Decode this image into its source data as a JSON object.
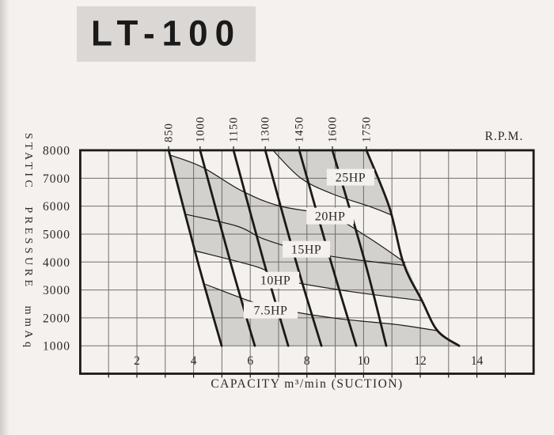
{
  "title": "LT-100",
  "colors": {
    "paper": "#f4f1ee",
    "shade": "#d3d1ce",
    "title_box": "#dad7d4",
    "curve_line": "#1a1a1a",
    "grid_line": "#5d5a56",
    "text": "#2a2826"
  },
  "chart_data": {
    "type": "line",
    "xlabel": "CAPACITY m³/min (SUCTION)",
    "ylabel": "STATIC PRESSURE mmAq",
    "rpm_axis_label": "R.P.M.",
    "xlim": [
      0,
      16
    ],
    "ylim": [
      0,
      8000
    ],
    "x_ticks": [
      2,
      4,
      6,
      8,
      10,
      12,
      14
    ],
    "y_ticks": [
      1000,
      2000,
      3000,
      4000,
      5000,
      6000,
      7000,
      8000
    ],
    "grid": "on",
    "rpm_curves": [
      {
        "rpm": "850",
        "pts": [
          [
            3.12,
            8000
          ],
          [
            4.15,
            4000
          ],
          [
            4.99,
            1000
          ]
        ]
      },
      {
        "rpm": "1000",
        "pts": [
          [
            4.23,
            8000
          ],
          [
            5.3,
            4000
          ],
          [
            6.16,
            1000
          ]
        ]
      },
      {
        "rpm": "1150",
        "pts": [
          [
            5.41,
            8000
          ],
          [
            6.48,
            4000
          ],
          [
            7.34,
            1000
          ]
        ]
      },
      {
        "rpm": "1300",
        "pts": [
          [
            6.53,
            8000
          ],
          [
            7.62,
            4000
          ],
          [
            8.51,
            1000
          ]
        ]
      },
      {
        "rpm": "1450",
        "pts": [
          [
            7.73,
            8000
          ],
          [
            8.85,
            4000
          ],
          [
            9.74,
            1000
          ]
        ]
      },
      {
        "rpm": "1600",
        "pts": [
          [
            8.9,
            8000
          ],
          [
            10.05,
            4000
          ],
          [
            10.8,
            1000
          ]
        ]
      },
      {
        "rpm": "1750",
        "pts": [
          [
            10.1,
            8000
          ],
          [
            10.91,
            5958
          ],
          [
            11.41,
            3946
          ],
          [
            12.06,
            2615
          ],
          [
            12.61,
            1538
          ],
          [
            13.37,
            1000
          ]
        ]
      }
    ],
    "hp_curves": [
      {
        "label": "25HP",
        "label_q": 9.54,
        "label_h": 7034,
        "pts": [
          [
            6.8,
            8000
          ],
          [
            7.78,
            7005
          ],
          [
            8.9,
            6439
          ],
          [
            10.3,
            5957
          ],
          [
            11.0,
            5674
          ]
        ]
      },
      {
        "label": "20HP",
        "label_q": 8.82,
        "label_h": 5646,
        "pts": [
          [
            3.17,
            7828
          ],
          [
            4.29,
            7403
          ],
          [
            5.69,
            6553
          ],
          [
            7.0,
            6014
          ],
          [
            8.82,
            5646
          ],
          [
            10.16,
            4881
          ],
          [
            11.47,
            3975
          ]
        ]
      },
      {
        "label": "15HP",
        "label_q": 7.98,
        "label_h": 4456,
        "pts": [
          [
            3.75,
            5700
          ],
          [
            5.55,
            5278
          ],
          [
            6.47,
            4825
          ],
          [
            7.98,
            4371
          ],
          [
            9.46,
            4116
          ],
          [
            11.45,
            3880
          ]
        ]
      },
      {
        "label": "10HP",
        "label_q": 6.89,
        "label_h": 3351,
        "pts": [
          [
            4.05,
            4400
          ],
          [
            6.3,
            3804
          ],
          [
            7.08,
            3379
          ],
          [
            9.46,
            2954
          ],
          [
            12.06,
            2615
          ]
        ]
      },
      {
        "label": "7.5HP",
        "label_q": 6.72,
        "label_h": 2275,
        "pts": [
          [
            4.42,
            3200
          ],
          [
            6.11,
            2558
          ],
          [
            7.22,
            2275
          ],
          [
            9.18,
            1963
          ],
          [
            11.13,
            1765
          ],
          [
            12.61,
            1538
          ]
        ]
      }
    ],
    "shaded_zones": [
      "above-25HP-to-1750-curve",
      "between-20HP-and-10HP",
      "between-7.5HP-and-1000mmAq"
    ]
  }
}
